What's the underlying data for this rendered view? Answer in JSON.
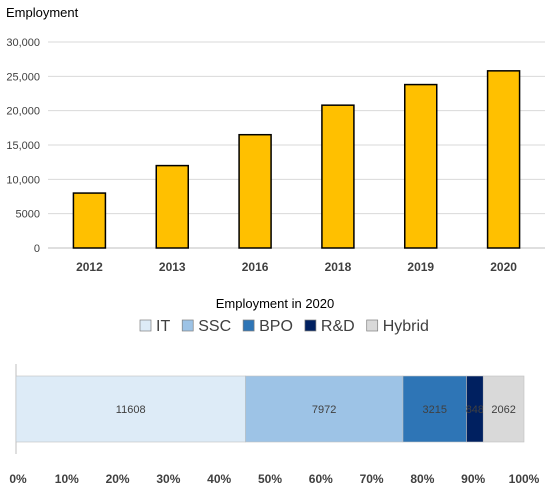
{
  "chart_data": [
    {
      "type": "bar",
      "title": "Employment",
      "categories": [
        "2012",
        "2013",
        "2016",
        "2018",
        "2019",
        "2020"
      ],
      "values": [
        8000,
        12000,
        16500,
        20800,
        23800,
        25800
      ],
      "ylim": [
        0,
        30000
      ],
      "yticks": [
        "0",
        "5000",
        "10,000",
        "15,000",
        "20,000",
        "25,000",
        "30,000"
      ],
      "grid": true,
      "bar_color": "#FFC000",
      "bar_edge": "#000000"
    },
    {
      "type": "bar",
      "orientation": "horizontal-stacked-100",
      "title": "Employment in 2020",
      "series": [
        {
          "name": "IT",
          "value": 11608,
          "label": "11608",
          "color": "#DDEBF7"
        },
        {
          "name": "SSC",
          "value": 7972,
          "label": "7972",
          "color": "#9DC3E6"
        },
        {
          "name": "BPO",
          "value": 3215,
          "label": "3215",
          "color": "#2E75B6"
        },
        {
          "name": "R&D",
          "value": 848,
          "label": "848",
          "color": "#002060"
        },
        {
          "name": "Hybrid",
          "value": 2062,
          "label": "2062",
          "color": "#D9D9D9"
        }
      ],
      "xlim": [
        0,
        100
      ],
      "xticks": [
        "0%",
        "10%",
        "20%",
        "30%",
        "40%",
        "50%",
        "60%",
        "70%",
        "80%",
        "90%",
        "100%"
      ],
      "legend_position": "top"
    }
  ]
}
